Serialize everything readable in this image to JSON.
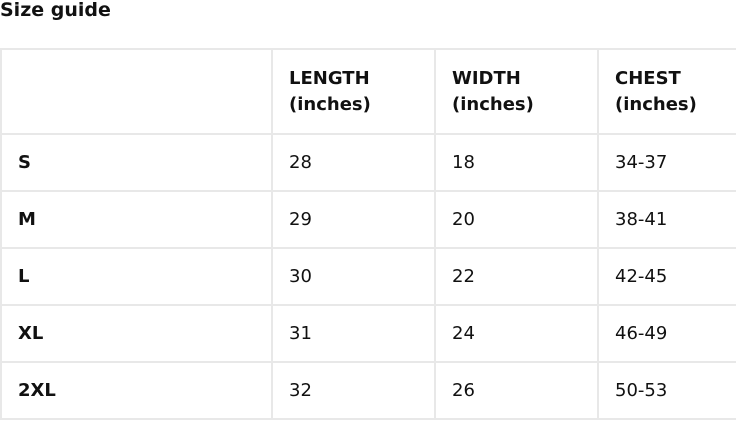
{
  "title": "Size guide",
  "table": {
    "headers": [
      "",
      "LENGTH\n(inches)",
      "WIDTH\n(inches)",
      "CHEST\n(inches)"
    ],
    "header_lines": [
      [
        "",
        ""
      ],
      [
        "LENGTH",
        "(inches)"
      ],
      [
        "WIDTH",
        "(inches)"
      ],
      [
        "CHEST",
        "(inches)"
      ]
    ],
    "rows": [
      [
        "S",
        "28",
        "18",
        "34-37"
      ],
      [
        "M",
        "29",
        "20",
        "38-41"
      ],
      [
        "L",
        "30",
        "22",
        "42-45"
      ],
      [
        "XL",
        "31",
        "24",
        "46-49"
      ],
      [
        "2XL",
        "32",
        "26",
        "50-53"
      ]
    ]
  }
}
